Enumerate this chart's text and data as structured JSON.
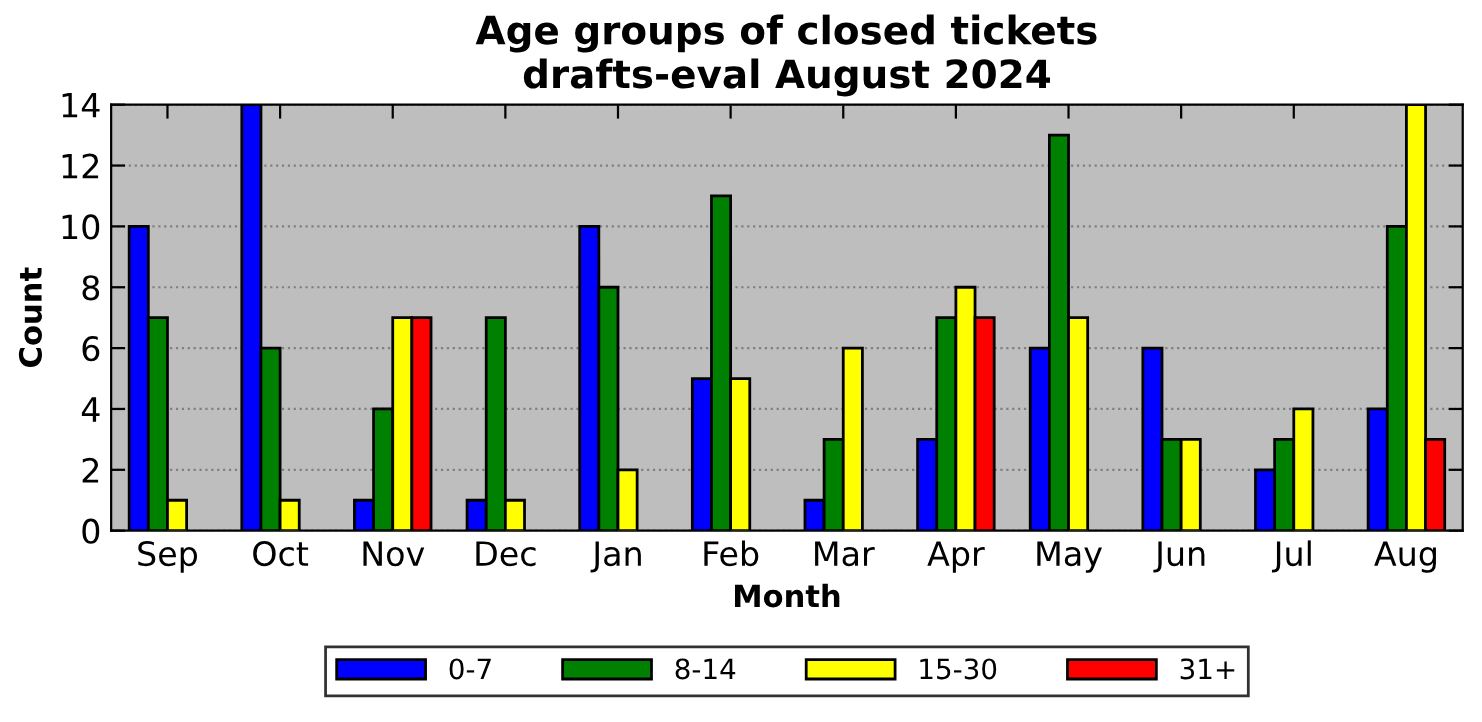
{
  "chart_data": {
    "type": "bar",
    "title": "Age groups of closed tickets\ndrafts-eval August 2024",
    "xlabel": "Month",
    "ylabel": "Count",
    "categories": [
      "Sep",
      "Oct",
      "Nov",
      "Dec",
      "Jan",
      "Feb",
      "Mar",
      "Apr",
      "May",
      "Jun",
      "Jul",
      "Aug"
    ],
    "series": [
      {
        "name": "0-7",
        "color": "#0000ff",
        "values": [
          10,
          14,
          1,
          1,
          10,
          5,
          1,
          3,
          6,
          6,
          2,
          4
        ]
      },
      {
        "name": "8-14",
        "color": "#008000",
        "values": [
          7,
          6,
          4,
          7,
          8,
          11,
          3,
          7,
          13,
          3,
          3,
          10
        ]
      },
      {
        "name": "15-30",
        "color": "#ffff00",
        "values": [
          1,
          1,
          7,
          1,
          2,
          5,
          6,
          8,
          7,
          3,
          4,
          14
        ]
      },
      {
        "name": "31+",
        "color": "#ff0000",
        "values": [
          null,
          null,
          7,
          null,
          null,
          null,
          null,
          7,
          null,
          null,
          null,
          3
        ]
      }
    ],
    "ylim": [
      0,
      14
    ],
    "yticks": [
      0,
      2,
      4,
      6,
      8,
      10,
      12,
      14
    ],
    "grid": "y",
    "legend": "bottom"
  }
}
